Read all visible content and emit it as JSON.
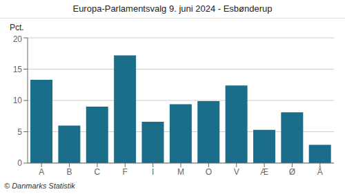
{
  "chart_data": {
    "type": "bar",
    "title": "Europa-Parlamentsvalg 9. juni 2024 - Esbønderup",
    "y_label": "Pct.",
    "annotations": [
      "© Danmarks Statistik"
    ],
    "categories": [
      "A",
      "B",
      "C",
      "F",
      "I",
      "M",
      "O",
      "V",
      "Æ",
      "Ø",
      "Å"
    ],
    "values": [
      13.3,
      6.0,
      9.0,
      17.2,
      6.6,
      9.4,
      9.9,
      12.4,
      5.3,
      8.1,
      2.9
    ],
    "color": "#1a6e8a",
    "ylim": [
      0,
      20
    ],
    "yticks": [
      0,
      5,
      10,
      15,
      20
    ],
    "grid": true
  }
}
